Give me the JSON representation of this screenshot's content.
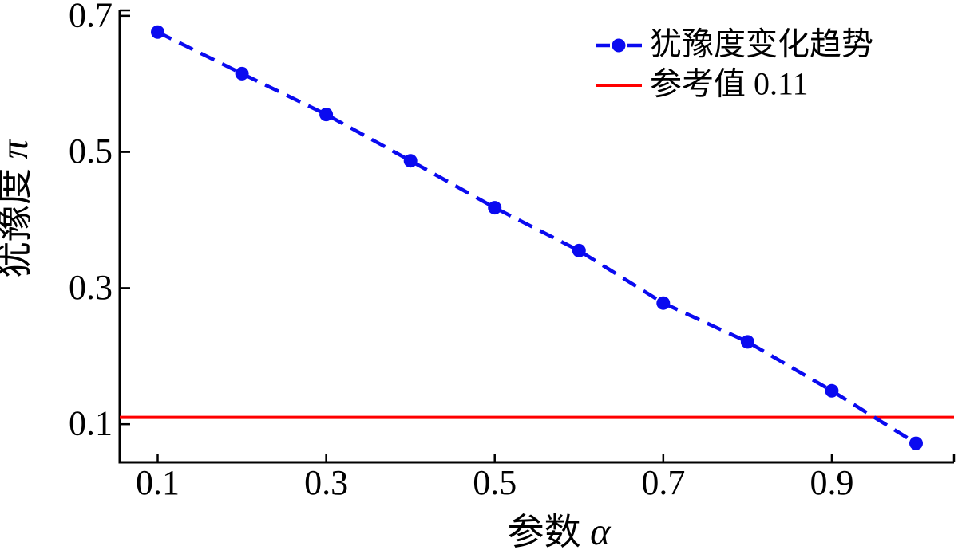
{
  "chart_data": {
    "type": "line",
    "title": "",
    "xlabel": "参数 α",
    "xlabel_parts": {
      "prefix": "参数 ",
      "symbol": "α"
    },
    "ylabel": "犹豫度 π",
    "ylabel_parts": {
      "prefix": "犹豫度 ",
      "symbol": "π"
    },
    "xlim": [
      0.055,
      1.045
    ],
    "ylim": [
      0.044,
      0.708
    ],
    "x_ticks": [
      0.1,
      0.3,
      0.5,
      0.7,
      0.9
    ],
    "x_tick_labels": [
      "0.1",
      "0.3",
      "0.5",
      "0.7",
      "0.9"
    ],
    "y_ticks": [
      0.1,
      0.3,
      0.5,
      0.7
    ],
    "y_tick_labels": [
      "0.1",
      "0.3",
      "0.5",
      "0.7"
    ],
    "grid": false,
    "legend": {
      "position": "top-right-inside",
      "border": false
    },
    "axis_color": "#000000",
    "background": "#ffffff",
    "series": [
      {
        "name": "犹豫度变化趋势",
        "type": "line",
        "style": "dashed",
        "marker": "circle",
        "color": "#0a0af0",
        "x": [
          0.1,
          0.2,
          0.3,
          0.4,
          0.5,
          0.6,
          0.7,
          0.8,
          0.9,
          1.0
        ],
        "y": [
          0.676,
          0.615,
          0.555,
          0.487,
          0.418,
          0.355,
          0.278,
          0.221,
          0.149,
          0.072
        ]
      },
      {
        "name": "参考值 0.11",
        "type": "reference-line",
        "style": "solid",
        "color": "#ff0000",
        "y": 0.11
      }
    ]
  }
}
